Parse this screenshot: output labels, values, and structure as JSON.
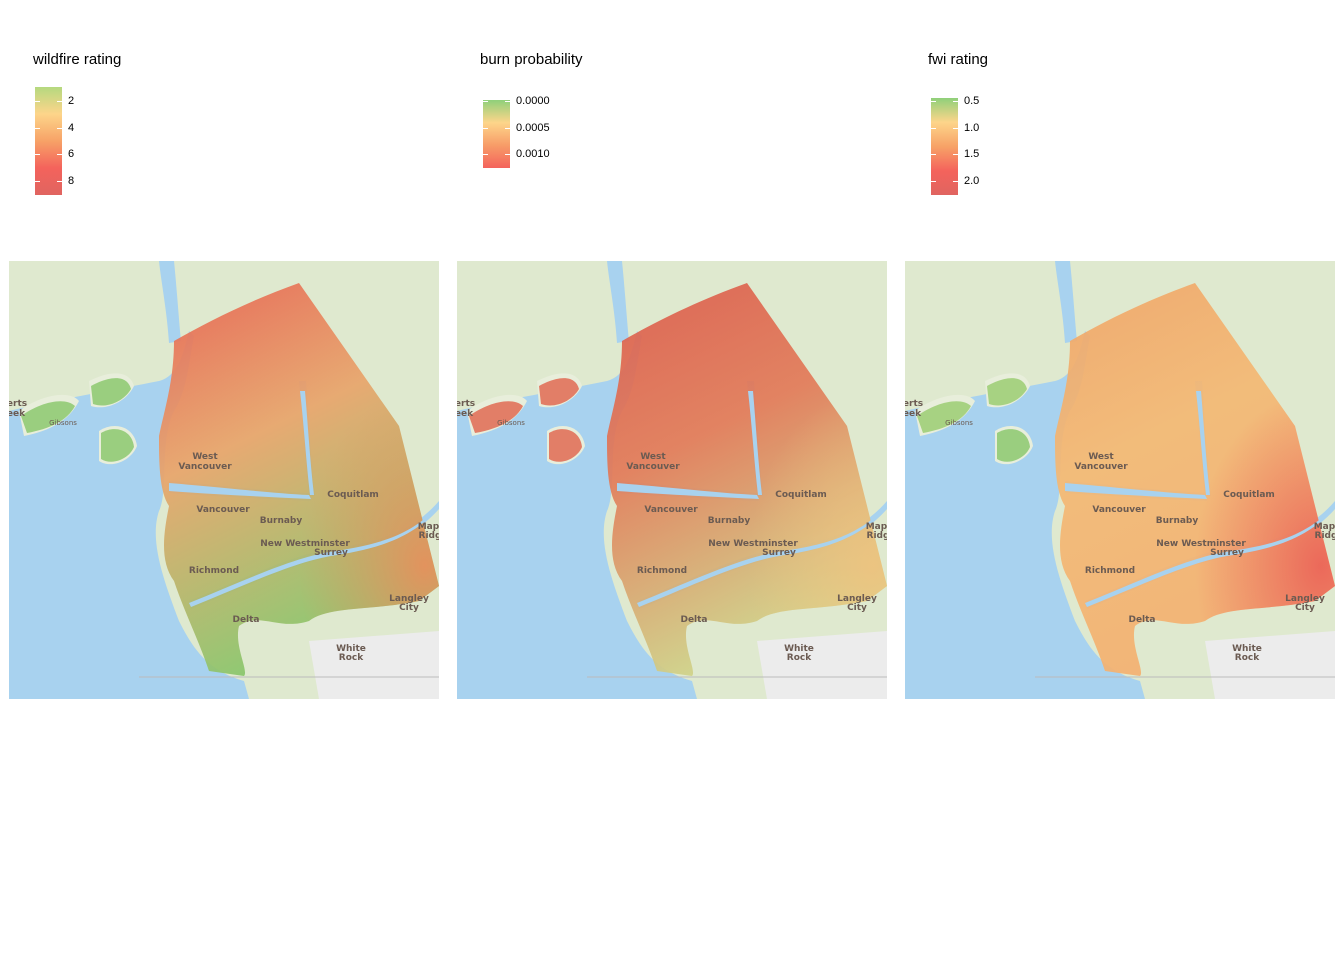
{
  "panels": [
    {
      "legend_title": "wildfire rating",
      "ticks": [
        "2",
        "4",
        "6",
        "8"
      ],
      "gradient": [
        "#b5d97f",
        "#fdd58a",
        "#f7a267",
        "#f4635c",
        "#e06460"
      ],
      "fill": {
        "kind": "wildfire",
        "north": "#e85f4f",
        "mid": "#e8a46a",
        "south": "#86c76b",
        "southeast": "#ef8a5a"
      }
    },
    {
      "legend_title": "burn probability",
      "ticks": [
        "0.0000",
        "0.0005",
        "0.0010"
      ],
      "gradient": [
        "#8fd07a",
        "#fdd58a",
        "#f79c68",
        "#f4635c"
      ],
      "fill": {
        "kind": "burn",
        "north": "#dc5a4b",
        "mid": "#e27a58",
        "south": "#cfd58a",
        "southeast": "#f0c27f"
      }
    },
    {
      "legend_title": "fwi rating",
      "ticks": [
        "0.5",
        "1.0",
        "1.5",
        "2.0"
      ],
      "gradient": [
        "#8fd07a",
        "#fdd58a",
        "#f7a267",
        "#f4635c",
        "#e06460"
      ],
      "fill": {
        "kind": "fwi",
        "north": "#f0a467",
        "mid": "#f4b873",
        "south": "#f4b070",
        "southeast": "#ea5c55"
      }
    }
  ],
  "map_labels": {
    "west_vancouver": [
      "West",
      "Vancouver"
    ],
    "vancouver": "Vancouver",
    "burnaby": "Burnaby",
    "coquitlam": "Coquitlam",
    "new_westminster": "New Westminster",
    "surrey": "Surrey",
    "richmond": "Richmond",
    "delta": "Delta",
    "langley_city": [
      "Langley",
      "City"
    ],
    "white_rock": [
      "White",
      "Rock"
    ],
    "maple_ridge": [
      "Mapl",
      "Ridg"
    ],
    "roberts_creek": [
      "erts",
      "eek"
    ],
    "gibsons": "Gibsons"
  },
  "colors": {
    "water": "#a8d2ef",
    "land": "#dfe9cf",
    "land_alt": "#e8eedb",
    "urban": "#ececec"
  }
}
